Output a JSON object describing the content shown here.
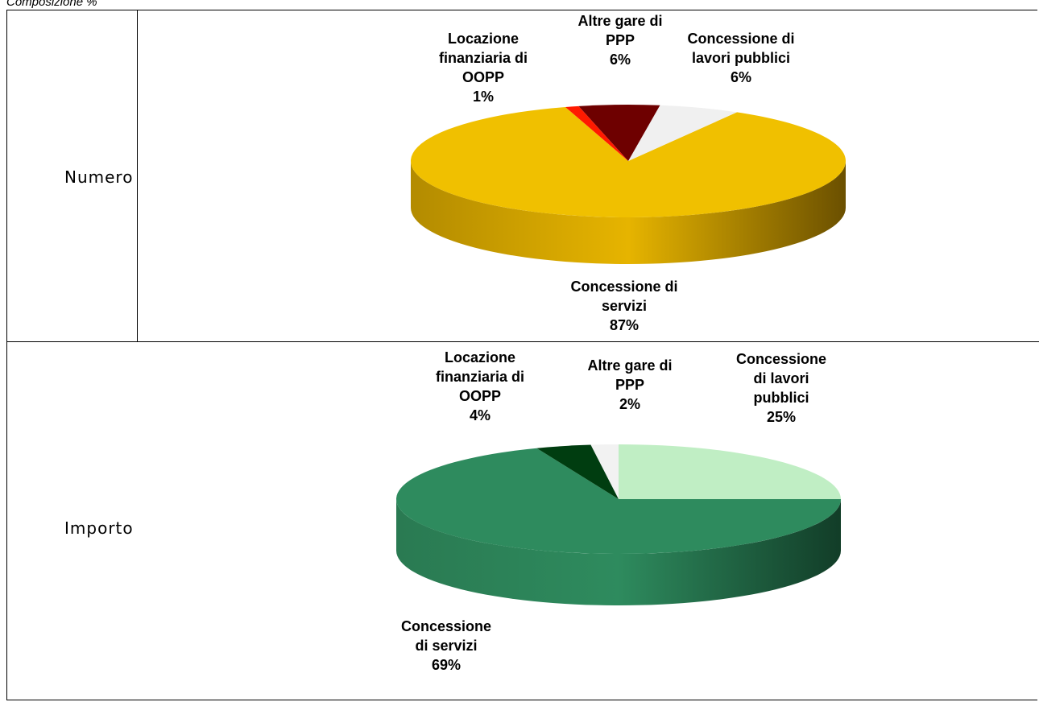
{
  "caption": "Composizione %",
  "colors": {
    "numero": [
      "#f0c000",
      "#f0f0f0",
      "#6e0000",
      "#ff1a00"
    ],
    "importo": [
      "#2e8b5e",
      "#c0eec4",
      "#f2f2f2",
      "#003d10"
    ]
  },
  "chart_data": [
    {
      "type": "pie",
      "row_label": "Numero",
      "title": "",
      "categories": [
        "Concessione di servizi",
        "Concessione di lavori pubblici",
        "Altre gare di PPP",
        "Locazione finanziaria di OOPP"
      ],
      "values": [
        87,
        6,
        6,
        1
      ],
      "labels": [
        {
          "lines": [
            "Concessione di",
            "servizi",
            "87%"
          ]
        },
        {
          "lines": [
            "Concessione di",
            "lavori pubblici",
            "6%"
          ]
        },
        {
          "lines": [
            "Altre gare di",
            "PPP",
            "6%"
          ]
        },
        {
          "lines": [
            "Locazione",
            "finanziaria di",
            "OOPP",
            "1%"
          ]
        }
      ]
    },
    {
      "type": "pie",
      "row_label": "Importo",
      "title": "",
      "categories": [
        "Concessione di servizi",
        "Concessione di lavori pubblici",
        "Altre gare di PPP",
        "Locazione finanziaria di OOPP"
      ],
      "values": [
        69,
        25,
        2,
        4
      ],
      "labels": [
        {
          "lines": [
            "Concessione",
            "di servizi",
            "69%"
          ]
        },
        {
          "lines": [
            "Concessione",
            "di lavori",
            "pubblici",
            "25%"
          ]
        },
        {
          "lines": [
            "Altre gare di",
            "PPP",
            "2%"
          ]
        },
        {
          "lines": [
            "Locazione",
            "finanziaria di",
            "OOPP",
            "4%"
          ]
        }
      ]
    }
  ]
}
